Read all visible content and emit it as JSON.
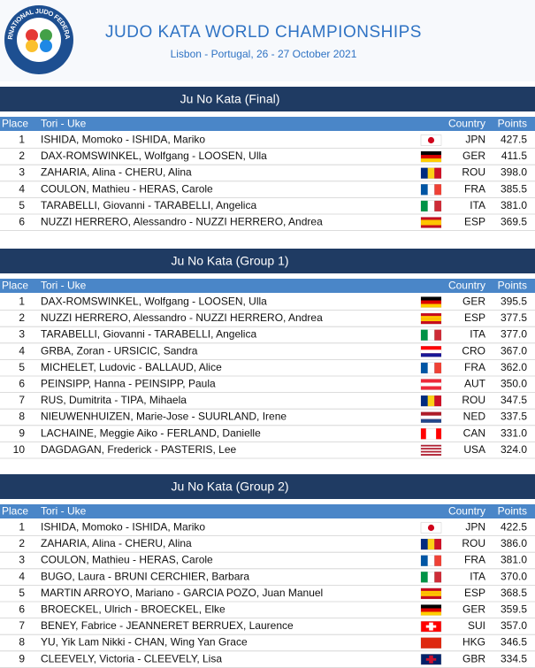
{
  "header": {
    "logo_text": "INTERNATIONAL JUDO FEDERATION",
    "title": "JUDO KATA WORLD CHAMPIONSHIPS",
    "subtitle": "Lisbon - Portugal, 26 - 27 October 2021"
  },
  "columns": [
    "Place",
    "Tori - Uke",
    "Country",
    "Points"
  ],
  "sections": [
    {
      "title": "Ju No Kata (Final)",
      "rows": [
        [
          "1",
          "ISHIDA, Momoko - ISHIDA, Mariko",
          "JPN",
          "427.5"
        ],
        [
          "2",
          "DAX-ROMSWINKEL, Wolfgang - LOOSEN, Ulla",
          "GER",
          "411.5"
        ],
        [
          "3",
          "ZAHARIA, Alina - CHERU, Alina",
          "ROU",
          "398.0"
        ],
        [
          "4",
          "COULON, Mathieu - HERAS, Carole",
          "FRA",
          "385.5"
        ],
        [
          "5",
          "TARABELLI, Giovanni - TARABELLI, Angelica",
          "ITA",
          "381.0"
        ],
        [
          "6",
          "NUZZI HERRERO, Alessandro - NUZZI HERRERO, Andrea",
          "ESP",
          "369.5"
        ]
      ],
      "flags": [
        {
          "d": "jp",
          "c": [
            "#ffffff",
            "#d0021b"
          ]
        },
        {
          "d": "h",
          "c": [
            "#000000",
            "#dd0000",
            "#ffce00"
          ]
        },
        {
          "d": "v",
          "c": [
            "#002b7f",
            "#fcd116",
            "#ce1126"
          ]
        },
        {
          "d": "v",
          "c": [
            "#0055a4",
            "#ffffff",
            "#ef4135"
          ]
        },
        {
          "d": "v",
          "c": [
            "#009246",
            "#ffffff",
            "#ce2b37"
          ]
        },
        {
          "d": "h",
          "c": [
            "#c60b1e",
            "#ffc400",
            "#ffc400",
            "#c60b1e"
          ]
        }
      ]
    },
    {
      "title": "Ju No Kata (Group 1)",
      "rows": [
        [
          "1",
          "DAX-ROMSWINKEL, Wolfgang - LOOSEN, Ulla",
          "GER",
          "395.5"
        ],
        [
          "2",
          "NUZZI HERRERO, Alessandro - NUZZI HERRERO, Andrea",
          "ESP",
          "377.5"
        ],
        [
          "3",
          "TARABELLI, Giovanni - TARABELLI, Angelica",
          "ITA",
          "377.0"
        ],
        [
          "4",
          "GRBA, Zoran - URSICIC, Sandra",
          "CRO",
          "367.0"
        ],
        [
          "5",
          "MICHELET, Ludovic - BALLAUD, Alice",
          "FRA",
          "362.0"
        ],
        [
          "6",
          "PEINSIPP, Hanna - PEINSIPP, Paula",
          "AUT",
          "350.0"
        ],
        [
          "7",
          "RUS, Dumitrita - TIPA, Mihaela",
          "ROU",
          "347.5"
        ],
        [
          "8",
          "NIEUWENHUIZEN, Marie-Jose - SUURLAND, Irene",
          "NED",
          "337.5"
        ],
        [
          "9",
          "LACHAINE, Meggie Aiko - FERLAND, Danielle",
          "CAN",
          "331.0"
        ],
        [
          "10",
          "DAGDAGAN, Frederick - PASTERIS, Lee",
          "USA",
          "324.0"
        ]
      ],
      "flags": [
        {
          "d": "h",
          "c": [
            "#000000",
            "#dd0000",
            "#ffce00"
          ]
        },
        {
          "d": "h",
          "c": [
            "#c60b1e",
            "#ffc400",
            "#ffc400",
            "#c60b1e"
          ]
        },
        {
          "d": "v",
          "c": [
            "#009246",
            "#ffffff",
            "#ce2b37"
          ]
        },
        {
          "d": "h",
          "c": [
            "#ff0000",
            "#ffffff",
            "#171796"
          ]
        },
        {
          "d": "v",
          "c": [
            "#0055a4",
            "#ffffff",
            "#ef4135"
          ]
        },
        {
          "d": "h",
          "c": [
            "#ed2939",
            "#ffffff",
            "#ed2939"
          ]
        },
        {
          "d": "v",
          "c": [
            "#002b7f",
            "#fcd116",
            "#ce1126"
          ]
        },
        {
          "d": "h",
          "c": [
            "#ae1c28",
            "#ffffff",
            "#21468b"
          ]
        },
        {
          "d": "v",
          "c": [
            "#ff0000",
            "#ffffff",
            "#ffffff",
            "#ff0000"
          ]
        },
        {
          "d": "h",
          "c": [
            "#b22234",
            "#ffffff",
            "#b22234",
            "#ffffff",
            "#b22234",
            "#ffffff",
            "#b22234"
          ]
        }
      ]
    },
    {
      "title": "Ju No Kata (Group 2)",
      "rows": [
        [
          "1",
          "ISHIDA, Momoko - ISHIDA, Mariko",
          "JPN",
          "422.5"
        ],
        [
          "2",
          "ZAHARIA, Alina - CHERU, Alina",
          "ROU",
          "386.0"
        ],
        [
          "3",
          "COULON, Mathieu - HERAS, Carole",
          "FRA",
          "381.0"
        ],
        [
          "4",
          "BUGO, Laura - BRUNI CERCHIER, Barbara",
          "ITA",
          "370.0"
        ],
        [
          "5",
          "MARTIN ARROYO, Mariano - GARCIA POZO, Juan Manuel",
          "ESP",
          "368.5"
        ],
        [
          "6",
          "BROECKEL, Ulrich - BROECKEL, Elke",
          "GER",
          "359.5"
        ],
        [
          "7",
          "BENEY, Fabrice - JEANNERET BERRUEX, Laurence",
          "SUI",
          "357.0"
        ],
        [
          "8",
          "YU, Yik Lam Nikki - CHAN, Wing Yan Grace",
          "HKG",
          "346.5"
        ],
        [
          "9",
          "CLEEVELY, Victoria - CLEEVELY, Lisa",
          "GBR",
          "334.5"
        ]
      ],
      "flags": [
        {
          "d": "jp",
          "c": [
            "#ffffff",
            "#d0021b"
          ]
        },
        {
          "d": "v",
          "c": [
            "#002b7f",
            "#fcd116",
            "#ce1126"
          ]
        },
        {
          "d": "v",
          "c": [
            "#0055a4",
            "#ffffff",
            "#ef4135"
          ]
        },
        {
          "d": "v",
          "c": [
            "#009246",
            "#ffffff",
            "#ce2b37"
          ]
        },
        {
          "d": "h",
          "c": [
            "#c60b1e",
            "#ffc400",
            "#ffc400",
            "#c60b1e"
          ]
        },
        {
          "d": "h",
          "c": [
            "#000000",
            "#dd0000",
            "#ffce00"
          ]
        },
        {
          "d": "x",
          "c": [
            "#ff0000",
            "#ffffff"
          ]
        },
        {
          "d": "h",
          "c": [
            "#de2910"
          ]
        },
        {
          "d": "x",
          "c": [
            "#012169",
            "#c8102e"
          ]
        }
      ]
    }
  ]
}
